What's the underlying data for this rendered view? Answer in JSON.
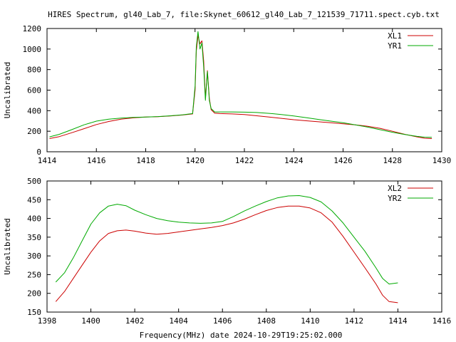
{
  "title": "HIRES Spectrum, gl40_Lab_7, file:Skynet_60612_gl40_Lab_7_121539_71711.spect.cyb.txt",
  "xlabel": "Frequency(MHz) date 2024-10-29T19:25:02.000",
  "chart_data": [
    {
      "type": "line",
      "ylabel": "Uncalibrated",
      "xlim": [
        1414,
        1430
      ],
      "ylim": [
        0,
        1200
      ],
      "xticks": [
        1414,
        1416,
        1418,
        1420,
        1422,
        1424,
        1426,
        1428,
        1430
      ],
      "yticks": [
        0,
        200,
        400,
        600,
        800,
        1000,
        1200
      ],
      "legend_position": "top-right",
      "series": [
        {
          "name": "XL1",
          "color": "#cc0000",
          "points": [
            [
              1414.1,
              128
            ],
            [
              1414.5,
              148
            ],
            [
              1415.0,
              185
            ],
            [
              1415.5,
              225
            ],
            [
              1416.0,
              265
            ],
            [
              1416.5,
              295
            ],
            [
              1417.0,
              318
            ],
            [
              1417.5,
              330
            ],
            [
              1418.0,
              338
            ],
            [
              1418.5,
              342
            ],
            [
              1419.0,
              348
            ],
            [
              1419.5,
              358
            ],
            [
              1419.9,
              368
            ],
            [
              1420.0,
              600
            ],
            [
              1420.05,
              980
            ],
            [
              1420.12,
              1130
            ],
            [
              1420.2,
              1050
            ],
            [
              1420.28,
              1080
            ],
            [
              1420.35,
              880
            ],
            [
              1420.42,
              520
            ],
            [
              1420.5,
              790
            ],
            [
              1420.58,
              520
            ],
            [
              1420.65,
              410
            ],
            [
              1420.8,
              375
            ],
            [
              1421.0,
              372
            ],
            [
              1421.5,
              368
            ],
            [
              1422.0,
              362
            ],
            [
              1422.5,
              350
            ],
            [
              1423.0,
              338
            ],
            [
              1423.5,
              325
            ],
            [
              1424.0,
              312
            ],
            [
              1424.5,
              302
            ],
            [
              1425.0,
              292
            ],
            [
              1425.5,
              282
            ],
            [
              1426.0,
              272
            ],
            [
              1426.5,
              262
            ],
            [
              1427.0,
              248
            ],
            [
              1427.5,
              228
            ],
            [
              1428.0,
              200
            ],
            [
              1428.5,
              170
            ],
            [
              1429.0,
              145
            ],
            [
              1429.3,
              132
            ],
            [
              1429.6,
              128
            ]
          ]
        },
        {
          "name": "YR1",
          "color": "#00aa00",
          "points": [
            [
              1414.1,
              145
            ],
            [
              1414.5,
              170
            ],
            [
              1415.0,
              215
            ],
            [
              1415.5,
              262
            ],
            [
              1416.0,
              298
            ],
            [
              1416.5,
              318
            ],
            [
              1417.0,
              328
            ],
            [
              1417.5,
              334
            ],
            [
              1418.0,
              338
            ],
            [
              1418.5,
              343
            ],
            [
              1419.0,
              350
            ],
            [
              1419.5,
              360
            ],
            [
              1419.9,
              372
            ],
            [
              1420.0,
              640
            ],
            [
              1420.05,
              1020
            ],
            [
              1420.12,
              1170
            ],
            [
              1420.2,
              1000
            ],
            [
              1420.28,
              1060
            ],
            [
              1420.35,
              820
            ],
            [
              1420.42,
              500
            ],
            [
              1420.5,
              780
            ],
            [
              1420.58,
              500
            ],
            [
              1420.65,
              420
            ],
            [
              1420.8,
              388
            ],
            [
              1421.0,
              388
            ],
            [
              1421.5,
              388
            ],
            [
              1422.0,
              386
            ],
            [
              1422.5,
              382
            ],
            [
              1423.0,
              374
            ],
            [
              1423.5,
              362
            ],
            [
              1424.0,
              348
            ],
            [
              1424.5,
              332
            ],
            [
              1425.0,
              315
            ],
            [
              1425.5,
              298
            ],
            [
              1426.0,
              282
            ],
            [
              1426.5,
              262
            ],
            [
              1427.0,
              240
            ],
            [
              1427.5,
              215
            ],
            [
              1428.0,
              190
            ],
            [
              1428.5,
              168
            ],
            [
              1429.0,
              150
            ],
            [
              1429.3,
              142
            ],
            [
              1429.6,
              140
            ]
          ]
        }
      ]
    },
    {
      "type": "line",
      "ylabel": "Uncalibrated",
      "xlim": [
        1398,
        1416
      ],
      "ylim": [
        150,
        500
      ],
      "xticks": [
        1398,
        1400,
        1402,
        1404,
        1406,
        1408,
        1410,
        1412,
        1414,
        1416
      ],
      "yticks": [
        150,
        200,
        250,
        300,
        350,
        400,
        450,
        500
      ],
      "legend_position": "top-right",
      "series": [
        {
          "name": "XL2",
          "color": "#cc0000",
          "points": [
            [
              1398.4,
              178
            ],
            [
              1398.8,
              205
            ],
            [
              1399.2,
              240
            ],
            [
              1399.6,
              275
            ],
            [
              1400.0,
              310
            ],
            [
              1400.4,
              340
            ],
            [
              1400.8,
              360
            ],
            [
              1401.2,
              367
            ],
            [
              1401.6,
              369
            ],
            [
              1402.0,
              366
            ],
            [
              1402.5,
              361
            ],
            [
              1403.0,
              358
            ],
            [
              1403.5,
              360
            ],
            [
              1404.0,
              364
            ],
            [
              1404.5,
              368
            ],
            [
              1405.0,
              372
            ],
            [
              1405.5,
              376
            ],
            [
              1406.0,
              381
            ],
            [
              1406.5,
              388
            ],
            [
              1407.0,
              398
            ],
            [
              1407.5,
              410
            ],
            [
              1408.0,
              421
            ],
            [
              1408.5,
              429
            ],
            [
              1409.0,
              433
            ],
            [
              1409.5,
              433
            ],
            [
              1410.0,
              428
            ],
            [
              1410.5,
              415
            ],
            [
              1411.0,
              390
            ],
            [
              1411.5,
              352
            ],
            [
              1412.0,
              310
            ],
            [
              1412.5,
              268
            ],
            [
              1413.0,
              225
            ],
            [
              1413.3,
              195
            ],
            [
              1413.6,
              178
            ],
            [
              1414.0,
              175
            ]
          ]
        },
        {
          "name": "YR2",
          "color": "#00aa00",
          "points": [
            [
              1398.4,
              230
            ],
            [
              1398.8,
              255
            ],
            [
              1399.2,
              295
            ],
            [
              1399.6,
              340
            ],
            [
              1400.0,
              385
            ],
            [
              1400.4,
              415
            ],
            [
              1400.8,
              433
            ],
            [
              1401.2,
              438
            ],
            [
              1401.6,
              434
            ],
            [
              1402.0,
              422
            ],
            [
              1402.5,
              410
            ],
            [
              1403.0,
              400
            ],
            [
              1403.5,
              394
            ],
            [
              1404.0,
              390
            ],
            [
              1404.5,
              388
            ],
            [
              1405.0,
              387
            ],
            [
              1405.5,
              388
            ],
            [
              1406.0,
              392
            ],
            [
              1406.5,
              405
            ],
            [
              1407.0,
              420
            ],
            [
              1407.5,
              433
            ],
            [
              1408.0,
              445
            ],
            [
              1408.5,
              455
            ],
            [
              1409.0,
              460
            ],
            [
              1409.5,
              461
            ],
            [
              1410.0,
              456
            ],
            [
              1410.5,
              444
            ],
            [
              1411.0,
              420
            ],
            [
              1411.5,
              388
            ],
            [
              1412.0,
              350
            ],
            [
              1412.5,
              312
            ],
            [
              1413.0,
              268
            ],
            [
              1413.3,
              240
            ],
            [
              1413.6,
              225
            ],
            [
              1414.0,
              228
            ]
          ]
        }
      ]
    }
  ]
}
